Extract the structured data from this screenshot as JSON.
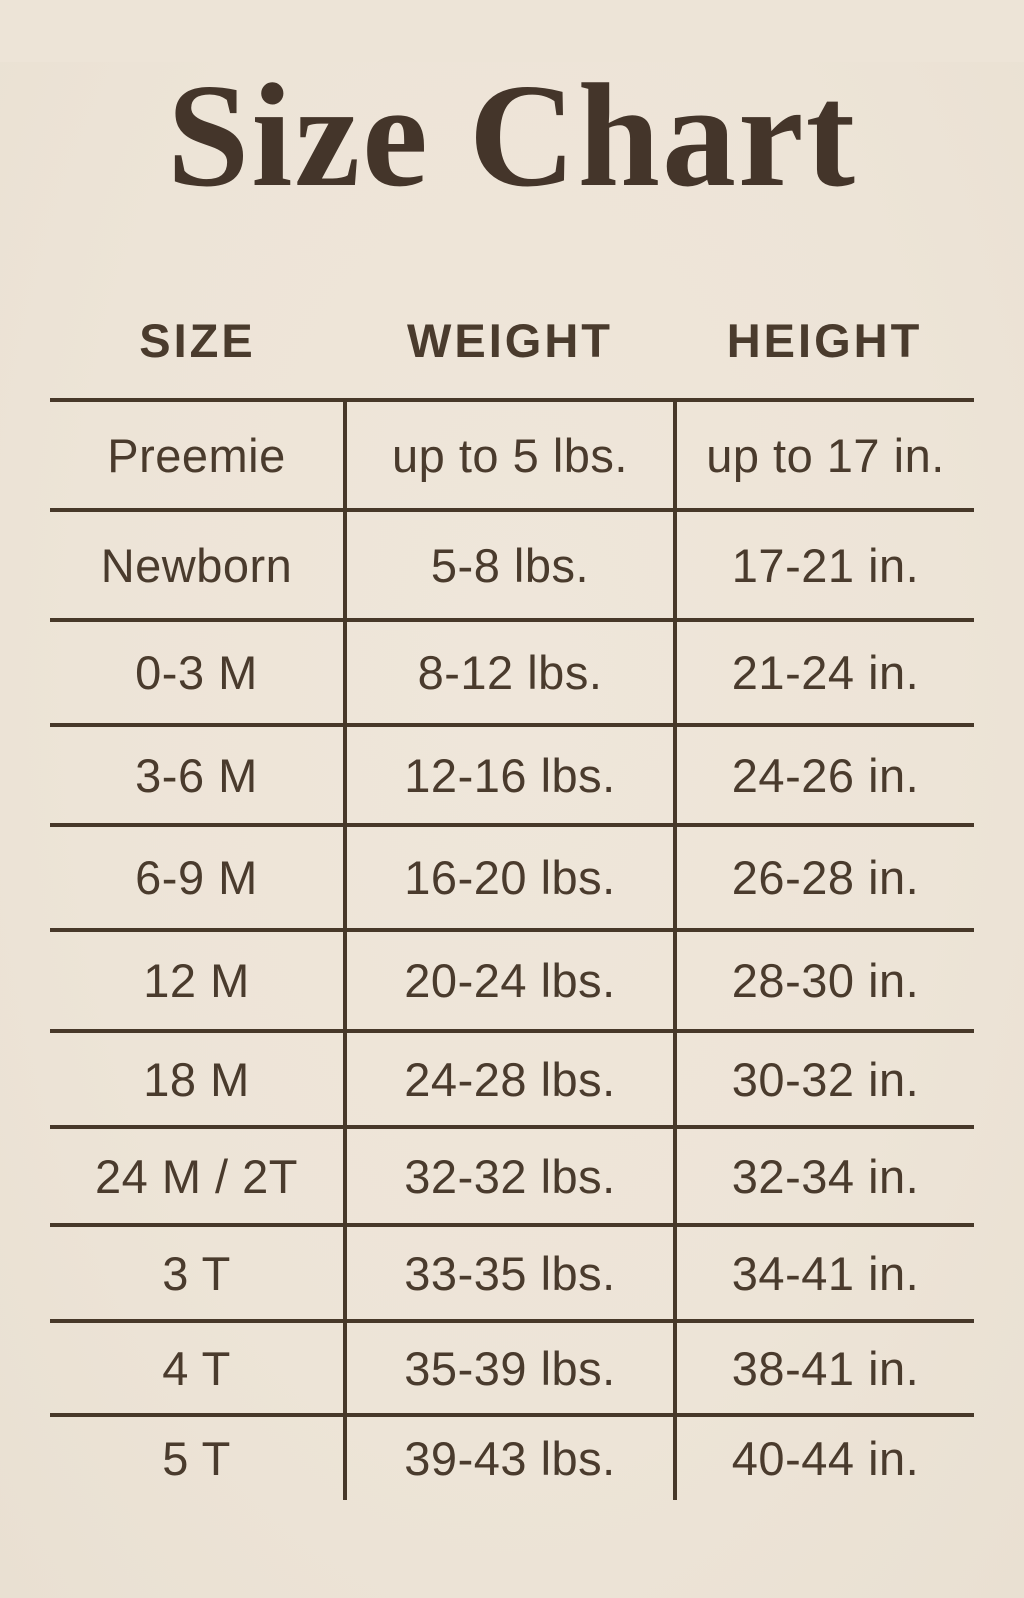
{
  "title": "Size Chart",
  "colors": {
    "background": "#EDE4D7",
    "text": "#4A3B2D",
    "title_text": "#44352A",
    "rule_lines": "#473829"
  },
  "chart_data": {
    "type": "table",
    "title": "Size Chart",
    "columns": [
      "SIZE",
      "WEIGHT",
      "HEIGHT"
    ],
    "rows": [
      [
        "Preemie",
        "up to 5 lbs.",
        "up to 17 in."
      ],
      [
        "Newborn",
        "5-8 lbs.",
        "17-21 in."
      ],
      [
        "0-3 M",
        "8-12 lbs.",
        "21-24 in."
      ],
      [
        "3-6 M",
        "12-16 lbs.",
        "24-26 in."
      ],
      [
        "6-9 M",
        "16-20 lbs.",
        "26-28 in."
      ],
      [
        "12 M",
        "20-24 lbs.",
        "28-30 in."
      ],
      [
        "18 M",
        "24-28 lbs.",
        "30-32 in."
      ],
      [
        "24 M / 2T",
        "32-32 lbs.",
        "32-34 in."
      ],
      [
        "3 T",
        "33-35 lbs.",
        "34-41 in."
      ],
      [
        "4 T",
        "35-39 lbs.",
        "38-41 in."
      ],
      [
        "5 T",
        "39-43 lbs.",
        "40-44 in."
      ]
    ]
  }
}
